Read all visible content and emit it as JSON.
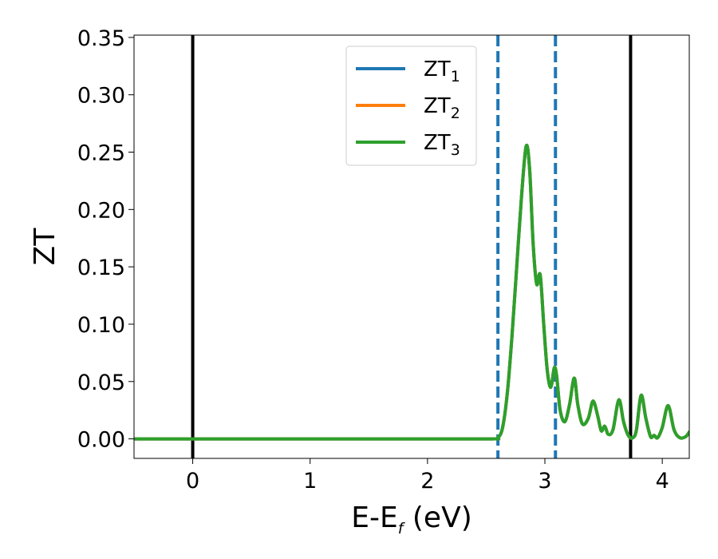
{
  "chart_data": {
    "type": "line",
    "xlabel_main": "E-E",
    "xlabel_sub": "f",
    "xlabel_unit": " (eV)",
    "ylabel": "ZT",
    "xlim": [
      -0.5,
      4.23
    ],
    "ylim": [
      -0.017,
      0.352
    ],
    "xticks": [
      {
        "value": 0,
        "label": "0"
      },
      {
        "value": 1,
        "label": "1"
      },
      {
        "value": 2,
        "label": "2"
      },
      {
        "value": 3,
        "label": "3"
      },
      {
        "value": 4,
        "label": "4"
      }
    ],
    "yticks": [
      {
        "value": 0.0,
        "label": "0.00"
      },
      {
        "value": 0.05,
        "label": "0.05"
      },
      {
        "value": 0.1,
        "label": "0.10"
      },
      {
        "value": 0.15,
        "label": "0.15"
      },
      {
        "value": 0.2,
        "label": "0.20"
      },
      {
        "value": 0.25,
        "label": "0.25"
      },
      {
        "value": 0.3,
        "label": "0.30"
      },
      {
        "value": 0.35,
        "label": "0.35"
      }
    ],
    "grid": false,
    "legend_position": "top-center",
    "vlines_solid": [
      0.0,
      3.73
    ],
    "vlines_dashed": [
      2.6,
      3.09
    ],
    "vline_solid_color": "#000000",
    "vline_dashed_color": "#1f77b4",
    "series": [
      {
        "name": "ZT",
        "name_sub": "1",
        "color": "#1f77b4",
        "x": [
          -0.5,
          0.0,
          1.0,
          2.0,
          2.55,
          2.6,
          2.64,
          2.68,
          2.72,
          2.76,
          2.8,
          2.84,
          2.87,
          2.9,
          2.93,
          2.96,
          2.99,
          3.02,
          3.05,
          3.08,
          3.1,
          3.13,
          3.17,
          3.21,
          3.25,
          3.28,
          3.32,
          3.37,
          3.41,
          3.45,
          3.48,
          3.51,
          3.54,
          3.58,
          3.63,
          3.67,
          3.71,
          3.75,
          3.78,
          3.82,
          3.86,
          3.9,
          3.93,
          3.96,
          4.0,
          4.05,
          4.1,
          4.15,
          4.2,
          4.23
        ],
        "y": [
          0.0,
          0.0,
          0.0,
          0.0,
          0.0,
          0.001,
          0.01,
          0.04,
          0.09,
          0.15,
          0.21,
          0.255,
          0.235,
          0.17,
          0.135,
          0.143,
          0.1,
          0.06,
          0.045,
          0.062,
          0.055,
          0.025,
          0.015,
          0.03,
          0.053,
          0.03,
          0.013,
          0.018,
          0.033,
          0.02,
          0.007,
          0.011,
          0.004,
          0.008,
          0.034,
          0.015,
          0.003,
          0.001,
          0.008,
          0.038,
          0.018,
          0.002,
          0.003,
          0.001,
          0.01,
          0.029,
          0.008,
          0.001,
          0.002,
          0.006
        ]
      },
      {
        "name": "ZT",
        "name_sub": "2",
        "color": "#ff7f0e",
        "x": [
          -0.5,
          0.0,
          1.0,
          2.0,
          2.55,
          2.6,
          2.64,
          2.68,
          2.72,
          2.76,
          2.8,
          2.84,
          2.87,
          2.9,
          2.93,
          2.96,
          2.99,
          3.02,
          3.05,
          3.08,
          3.1,
          3.13,
          3.17,
          3.21,
          3.25,
          3.28,
          3.32,
          3.37,
          3.41,
          3.45,
          3.48,
          3.51,
          3.54,
          3.58,
          3.63,
          3.67,
          3.71,
          3.75,
          3.78,
          3.82,
          3.86,
          3.9,
          3.93,
          3.96,
          4.0,
          4.05,
          4.1,
          4.15,
          4.2,
          4.23
        ],
        "y": [
          0.0,
          0.0,
          0.0,
          0.0,
          0.0,
          0.001,
          0.01,
          0.04,
          0.09,
          0.15,
          0.21,
          0.255,
          0.235,
          0.17,
          0.135,
          0.143,
          0.1,
          0.06,
          0.045,
          0.062,
          0.055,
          0.025,
          0.015,
          0.03,
          0.053,
          0.03,
          0.013,
          0.018,
          0.033,
          0.02,
          0.007,
          0.011,
          0.004,
          0.008,
          0.034,
          0.015,
          0.003,
          0.001,
          0.008,
          0.038,
          0.018,
          0.002,
          0.003,
          0.001,
          0.01,
          0.029,
          0.008,
          0.001,
          0.002,
          0.006
        ]
      },
      {
        "name": "ZT",
        "name_sub": "3",
        "color": "#2ca02c",
        "x": [
          -0.5,
          0.0,
          1.0,
          2.0,
          2.55,
          2.6,
          2.64,
          2.68,
          2.72,
          2.76,
          2.8,
          2.84,
          2.87,
          2.9,
          2.93,
          2.96,
          2.99,
          3.02,
          3.05,
          3.08,
          3.1,
          3.13,
          3.17,
          3.21,
          3.25,
          3.28,
          3.32,
          3.37,
          3.41,
          3.45,
          3.48,
          3.51,
          3.54,
          3.58,
          3.63,
          3.67,
          3.71,
          3.75,
          3.78,
          3.82,
          3.86,
          3.9,
          3.93,
          3.96,
          4.0,
          4.05,
          4.1,
          4.15,
          4.2,
          4.23
        ],
        "y": [
          0.0,
          0.0,
          0.0,
          0.0,
          0.0,
          0.001,
          0.01,
          0.04,
          0.09,
          0.15,
          0.21,
          0.255,
          0.235,
          0.17,
          0.135,
          0.143,
          0.1,
          0.06,
          0.045,
          0.062,
          0.055,
          0.025,
          0.015,
          0.03,
          0.053,
          0.03,
          0.013,
          0.018,
          0.033,
          0.02,
          0.007,
          0.011,
          0.004,
          0.008,
          0.034,
          0.015,
          0.003,
          0.001,
          0.008,
          0.038,
          0.018,
          0.002,
          0.003,
          0.001,
          0.01,
          0.029,
          0.008,
          0.001,
          0.002,
          0.006
        ]
      }
    ]
  }
}
